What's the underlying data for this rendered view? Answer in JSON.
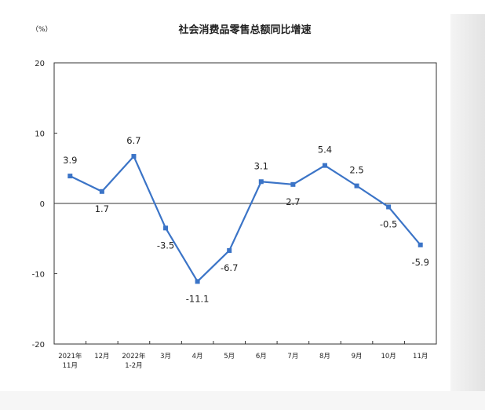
{
  "chart_data": {
    "type": "line",
    "title": "社会消费品零售总额同比增速",
    "unit_label": "（%）",
    "ylim": [
      -20,
      20
    ],
    "yticks": [
      20,
      10,
      0,
      -10,
      -20
    ],
    "categories": [
      [
        "2021年",
        "11月"
      ],
      [
        "12月"
      ],
      [
        "2022年",
        "1-2月"
      ],
      [
        "3月"
      ],
      [
        "4月"
      ],
      [
        "5月"
      ],
      [
        "6月"
      ],
      [
        "7月"
      ],
      [
        "8月"
      ],
      [
        "9月"
      ],
      [
        "10月"
      ],
      [
        "11月"
      ]
    ],
    "values": [
      3.9,
      1.7,
      6.7,
      -3.5,
      -11.1,
      -6.7,
      3.1,
      2.7,
      5.4,
      2.5,
      -0.5,
      -5.9
    ],
    "data_labels": [
      "3.9",
      "1.7",
      "6.7",
      "-3.5",
      "-11.1",
      "-6.7",
      "3.1",
      "2.7",
      "5.4",
      "2.5",
      "-0.5",
      "-5.9"
    ],
    "grid": false,
    "legend": "none",
    "color": "#3b74c7"
  }
}
